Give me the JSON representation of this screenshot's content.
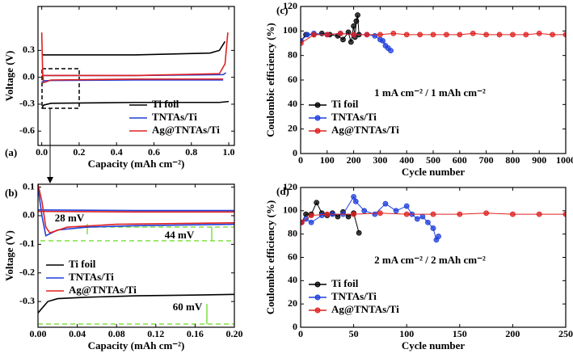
{
  "chart_data": [
    {
      "type": "line",
      "panel_label": "(a)",
      "xlabel": "Capacity (mAh cm⁻²)",
      "ylabel": "Voltage (V)",
      "xlim": [
        -0.02,
        1.03
      ],
      "ylim": [
        -0.76,
        0.79
      ],
      "xticks": [
        {
          "value": 0,
          "label": "0.0"
        },
        0.2,
        0.4,
        0.6,
        0.8,
        {
          "value": 1,
          "label": "1.0"
        }
      ],
      "yticks": [
        0.3,
        {
          "value": 0,
          "label": "0.0"
        },
        -0.3,
        -0.6
      ],
      "legend": "lower right",
      "markers": false,
      "series": [
        {
          "name": "Ti foil",
          "color": "#000000",
          "x": [
            0,
            0.01,
            0.05,
            0.5,
            0.95,
            1.0,
            null,
            0,
            0.02,
            0.5,
            0.9,
            0.95,
            0.98
          ],
          "values": [
            -0.35,
            -0.31,
            -0.29,
            -0.28,
            -0.28,
            -0.27,
            null,
            0.25,
            0.25,
            0.25,
            0.27,
            0.3,
            0.4
          ]
        },
        {
          "name": "TNTAs/Ti",
          "color": "#1f3fdc",
          "x": [
            0,
            0.01,
            0.05,
            0.5,
            0.97,
            null,
            0,
            0.05,
            0.5,
            0.97,
            0.985
          ],
          "values": [
            -0.05,
            -0.04,
            -0.035,
            -0.03,
            -0.03,
            null,
            0.02,
            0.02,
            0.02,
            0.03,
            0.05
          ]
        },
        {
          "name": "Ag@TNTAs/Ti",
          "color": "#e02020",
          "x": [
            0,
            0.005,
            0.01,
            0.05,
            0.5,
            0.97,
            null,
            0,
            0.05,
            0.5,
            0.95,
            0.98,
            0.995
          ],
          "values": [
            0.5,
            0.05,
            -0.06,
            -0.03,
            -0.02,
            -0.02,
            null,
            0.02,
            0.02,
            0.02,
            0.04,
            0.15,
            0.5
          ]
        }
      ]
    },
    {
      "type": "line",
      "panel_label": "(b)",
      "xlabel": "Capacity (mAh cm⁻²)",
      "ylabel": "Voltage (V)",
      "xlim": [
        0,
        0.2
      ],
      "ylim": [
        -0.39,
        0.11
      ],
      "xticks": [
        {
          "value": 0,
          "label": "0.00"
        },
        0.04,
        0.08,
        0.12,
        0.16,
        {
          "value": 0.2,
          "label": "0.20"
        }
      ],
      "yticks": [
        0.1,
        {
          "value": 0,
          "label": "0.0"
        },
        -0.1,
        -0.2,
        -0.3
      ],
      "legend": "lower left",
      "markers": false,
      "annotations": [
        "28 mV",
        "44 mV",
        "60 mV"
      ],
      "series": [
        {
          "name": "Ti foil",
          "color": "#000000",
          "x": [
            0,
            0.005,
            0.01,
            0.02,
            0.05,
            0.1,
            0.15,
            0.2
          ],
          "values": [
            -0.34,
            -0.32,
            -0.3,
            -0.29,
            -0.285,
            -0.28,
            -0.278,
            -0.275
          ]
        },
        {
          "name": "TNTAs/Ti",
          "color": "#1f3fdc",
          "x": [
            0,
            0.004,
            0.008,
            0.02,
            0.05,
            0.1,
            0.2,
            null,
            0,
            0.1,
            0.2
          ],
          "values": [
            0.1,
            0.0,
            -0.07,
            -0.05,
            -0.04,
            -0.035,
            -0.03,
            null,
            0.02,
            0.018,
            0.018
          ]
        },
        {
          "name": "Ag@TNTAs/Ti",
          "color": "#e02020",
          "x": [
            0,
            0.004,
            0.008,
            0.012,
            0.03,
            0.08,
            0.2,
            null,
            0,
            0.1,
            0.2
          ],
          "values": [
            0.11,
            0.05,
            -0.04,
            -0.06,
            -0.04,
            -0.03,
            -0.025,
            null,
            0.015,
            0.013,
            0.013
          ]
        }
      ]
    },
    {
      "type": "line",
      "panel_label": "(c)",
      "xlabel": "Cycle number",
      "ylabel": "Coulombic efficiency (%)",
      "xlim": [
        0,
        1000
      ],
      "ylim": [
        0,
        120
      ],
      "xticks": [
        0,
        100,
        200,
        300,
        400,
        500,
        600,
        700,
        800,
        900,
        1000
      ],
      "yticks": [
        0,
        20,
        40,
        60,
        80,
        100,
        120
      ],
      "legend": "lower left",
      "markers": true,
      "annotations": [
        "1 mA cm⁻² / 1 mAh cm⁻²"
      ],
      "series": [
        {
          "name": "Ti foil",
          "color": "#000000",
          "x": [
            1,
            20,
            50,
            80,
            110,
            140,
            160,
            180,
            190,
            200,
            205,
            210,
            215,
            220
          ],
          "values": [
            92,
            97,
            97,
            98,
            97,
            96,
            93,
            99,
            91,
            104,
            95,
            108,
            113,
            97
          ]
        },
        {
          "name": "TNTAs/Ti",
          "color": "#1f3fdc",
          "x": [
            1,
            25,
            50,
            100,
            150,
            200,
            250,
            280,
            300,
            310,
            320,
            330,
            340
          ],
          "values": [
            92,
            97,
            98,
            97,
            98,
            97,
            97,
            96,
            93,
            92,
            88,
            86,
            84
          ]
        },
        {
          "name": "Ag@TNTAs/Ti",
          "color": "#e02020",
          "x": [
            1,
            50,
            100,
            150,
            200,
            250,
            300,
            350,
            400,
            450,
            500,
            550,
            600,
            650,
            700,
            750,
            800,
            850,
            900,
            950,
            1000
          ],
          "values": [
            90,
            97,
            97,
            98,
            97,
            97,
            97,
            98,
            97,
            97,
            97,
            97,
            97,
            98,
            97,
            97,
            97,
            97,
            98,
            97,
            97
          ]
        }
      ]
    },
    {
      "type": "line",
      "panel_label": "(d)",
      "xlabel": "Cycle number",
      "ylabel": "Coulombic efficiency (%)",
      "xlim": [
        0,
        250
      ],
      "ylim": [
        0,
        120
      ],
      "xticks": [
        0,
        50,
        100,
        150,
        200,
        250
      ],
      "yticks": [
        0,
        20,
        40,
        60,
        80,
        100,
        120
      ],
      "legend": "lower left",
      "markers": true,
      "annotations": [
        "2 mA cm⁻² / 2 mAh cm⁻²"
      ],
      "series": [
        {
          "name": "Ti foil",
          "color": "#000000",
          "x": [
            1,
            5,
            10,
            15,
            20,
            25,
            30,
            35,
            40,
            45,
            50,
            55
          ],
          "values": [
            90,
            97,
            97,
            107,
            98,
            96,
            98,
            95,
            99,
            95,
            98,
            81
          ]
        },
        {
          "name": "TNTAs/Ti",
          "color": "#1f3fdc",
          "x": [
            1,
            5,
            10,
            20,
            30,
            40,
            50,
            52,
            60,
            70,
            80,
            90,
            100,
            105,
            110,
            115,
            120,
            125,
            128,
            130
          ],
          "values": [
            90,
            93,
            90,
            96,
            97,
            97,
            112,
            108,
            100,
            97,
            106,
            100,
            104,
            97,
            93,
            95,
            90,
            85,
            75,
            78
          ]
        },
        {
          "name": "Ag@TNTAs/Ti",
          "color": "#e02020",
          "x": [
            1,
            10,
            25,
            50,
            75,
            100,
            125,
            150,
            175,
            200,
            225,
            250
          ],
          "values": [
            90,
            96,
            97,
            97,
            98,
            97,
            97,
            97,
            98,
            97,
            97,
            97
          ]
        }
      ]
    }
  ]
}
